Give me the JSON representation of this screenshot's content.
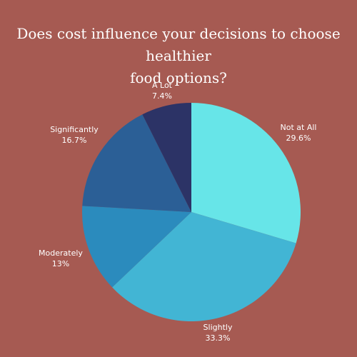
{
  "background_color": "#a65a52",
  "chart_data": {
    "type": "pie",
    "title_lines": [
      "Does cost influence your decisions to choose healthier",
      "food options?"
    ],
    "start": "12 o'clock",
    "direction": "clockwise",
    "slices": [
      {
        "label": "Not at All",
        "value": 29.6,
        "display": "29.6%",
        "color": "#67e5e8"
      },
      {
        "label": "Slightly",
        "value": 33.3,
        "display": "33.3%",
        "color": "#42b5d4"
      },
      {
        "label": "Moderately",
        "value": 13.0,
        "display": "13%",
        "color": "#2b8bbd"
      },
      {
        "label": "Significantly",
        "value": 16.7,
        "display": "16.7%",
        "color": "#2b5f96"
      },
      {
        "label": "A Lot",
        "value": 7.4,
        "display": "7.4%",
        "color": "#2c3366"
      }
    ]
  }
}
